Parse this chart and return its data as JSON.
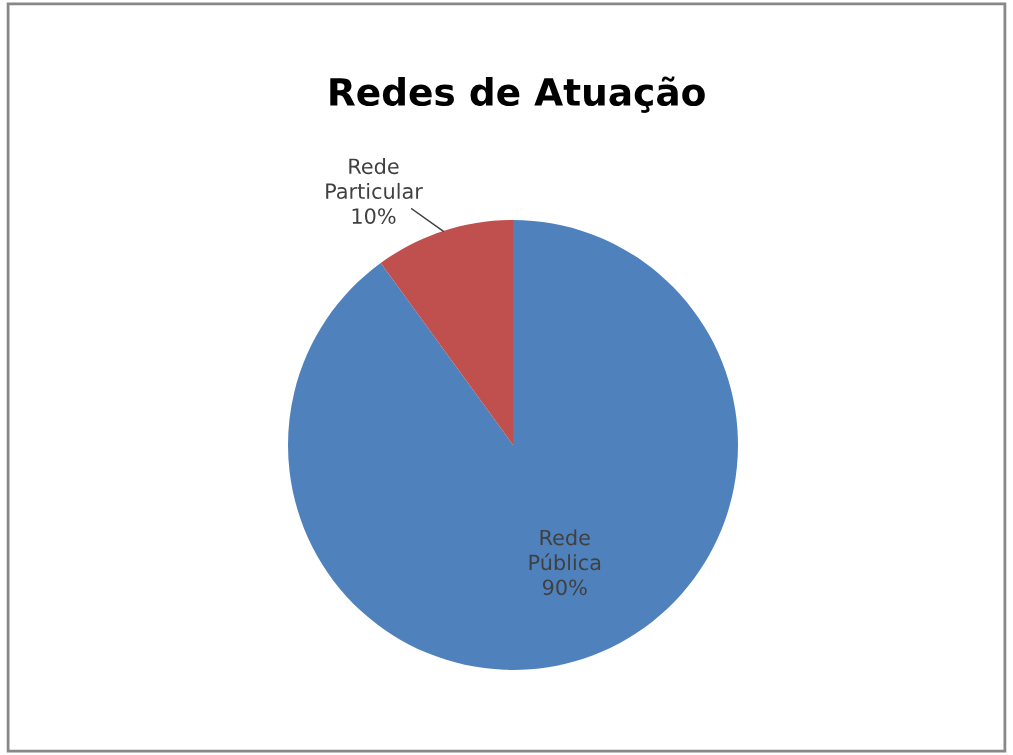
{
  "chart_data": {
    "type": "pie",
    "title": "Redes de Atuação",
    "categories": [
      "Rede Pública",
      "Rede Particular"
    ],
    "values": [
      90,
      10
    ],
    "colors": [
      "#4f81bd",
      "#c0504d"
    ],
    "value_labels": [
      "90%",
      "10%"
    ],
    "legend": false
  }
}
